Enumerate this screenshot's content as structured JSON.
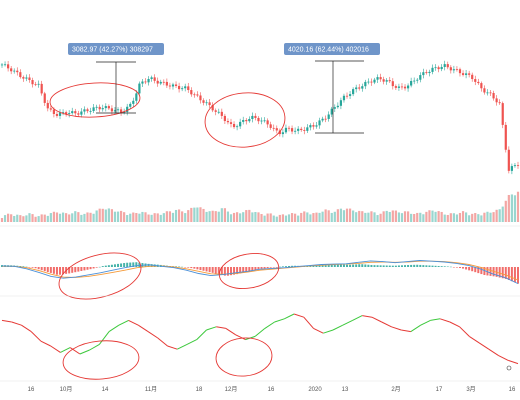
{
  "chart_data": {
    "type": "candlestick",
    "panels": [
      "price-candles",
      "volume-bars",
      "macd",
      "oscillator-line"
    ],
    "x_tick_labels": [
      "16",
      "10月",
      "14",
      "11月",
      "18",
      "12月",
      "16",
      "2020",
      "13",
      "2月",
      "17",
      "3月",
      "16"
    ],
    "price_series": [
      10.0,
      9.6,
      9.1,
      8.7,
      8.3,
      6.4,
      6.0,
      6.2,
      6.1,
      6.3,
      6.5,
      6.6,
      6.4,
      6.2,
      6.8,
      8.5,
      8.9,
      8.6,
      8.4,
      8.2,
      8.1,
      7.5,
      7.0,
      6.4,
      5.8,
      5.0,
      5.4,
      5.8,
      5.6,
      5.2,
      4.5,
      4.9,
      4.7,
      4.9,
      5.2,
      5.7,
      6.5,
      7.3,
      7.9,
      8.3,
      8.7,
      8.9,
      8.6,
      8.1,
      8.3,
      8.9,
      9.4,
      9.7,
      9.9,
      9.6,
      9.3,
      9.0,
      8.1,
      7.6,
      6.9,
      1.6,
      2.1
    ],
    "volume_series": [
      2,
      3,
      2,
      3,
      2,
      3,
      4,
      3,
      4,
      3,
      4,
      6,
      5,
      4,
      3,
      4,
      3,
      3,
      4,
      5,
      4,
      7,
      5,
      4,
      6,
      3,
      4,
      5,
      3,
      3,
      2,
      3,
      3,
      4,
      3,
      5,
      4,
      6,
      5,
      4,
      4,
      3,
      5,
      4,
      4,
      3,
      4,
      5,
      3,
      3,
      4,
      3,
      3,
      4,
      5,
      12,
      14
    ],
    "macd_hist": [
      0.6,
      0.5,
      0.2,
      -0.4,
      -1.5,
      -2.5,
      -2.0,
      -1.3,
      -0.6,
      0.3,
      0.8,
      1.3,
      1.5,
      1.0,
      0.7,
      0.3,
      0.1,
      -0.4,
      -1.2,
      -2.0,
      -2.8,
      -2.2,
      -1.4,
      -0.6,
      -0.2,
      0.2,
      0.4,
      0.3,
      0.5,
      0.6,
      0.8,
      0.7,
      0.9,
      0.6,
      0.5,
      0.4,
      0.6,
      0.7,
      0.5,
      0.3,
      0.1,
      -0.4,
      -1.4,
      -2.5,
      -3.0,
      -3.8,
      -5.2
    ],
    "macd_line": [
      0.3,
      0.2,
      -0.5,
      -1.5,
      -2.6,
      -3.1,
      -2.8,
      -2.2,
      -1.6,
      -0.9,
      -0.2,
      0.4,
      0.6,
      0.2,
      -0.2,
      -0.9,
      -1.8,
      -2.4,
      -2.1,
      -1.6,
      -1.2,
      -0.6,
      -0.4,
      -0.2,
      0.1,
      0.4,
      0.7,
      0.8,
      0.9,
      1.3,
      1.7,
      1.5,
      1.2,
      1.5,
      1.8,
      1.6,
      1.4,
      1.0,
      0.4,
      -0.6,
      -2.0,
      -3.0,
      -4.6
    ],
    "signal_line": [
      0.2,
      0.2,
      -0.2,
      -1.0,
      -2.0,
      -2.8,
      -2.9,
      -2.6,
      -2.1,
      -1.5,
      -0.9,
      -0.2,
      0.2,
      0.3,
      0.0,
      -0.5,
      -1.2,
      -1.9,
      -2.0,
      -1.8,
      -1.4,
      -0.9,
      -0.6,
      -0.3,
      0.0,
      0.3,
      0.5,
      0.7,
      0.8,
      1.0,
      1.3,
      1.4,
      1.3,
      1.4,
      1.6,
      1.6,
      1.5,
      1.2,
      0.7,
      -0.1,
      -1.2,
      -2.2,
      -3.6
    ],
    "oscillator_series": [
      72,
      70,
      66,
      58,
      46,
      40,
      32,
      38,
      30,
      35,
      42,
      58,
      66,
      72,
      66,
      58,
      50,
      40,
      36,
      42,
      48,
      60,
      64,
      62,
      54,
      48,
      52,
      62,
      70,
      74,
      80,
      76,
      62,
      56,
      60,
      66,
      72,
      78,
      76,
      70,
      64,
      60,
      58,
      66,
      72,
      74,
      70,
      64,
      52,
      44,
      36,
      28,
      22,
      18
    ],
    "measurements": [
      {
        "label": "3082.97 (42.27%) 308297"
      },
      {
        "label": "4020.16 (62.44%) 402016"
      }
    ],
    "colors": {
      "up": "#26a69a",
      "down": "#ef5350",
      "volume_up": "#99d6cf",
      "volume_down": "#f3a6a4",
      "macd_line": "#4a90d9",
      "signal_line": "#f59b3a",
      "osc_up": "#3cc83c",
      "osc_down": "#e53935",
      "annotation": "#e53935",
      "measure_box": "#6f95c9"
    }
  }
}
